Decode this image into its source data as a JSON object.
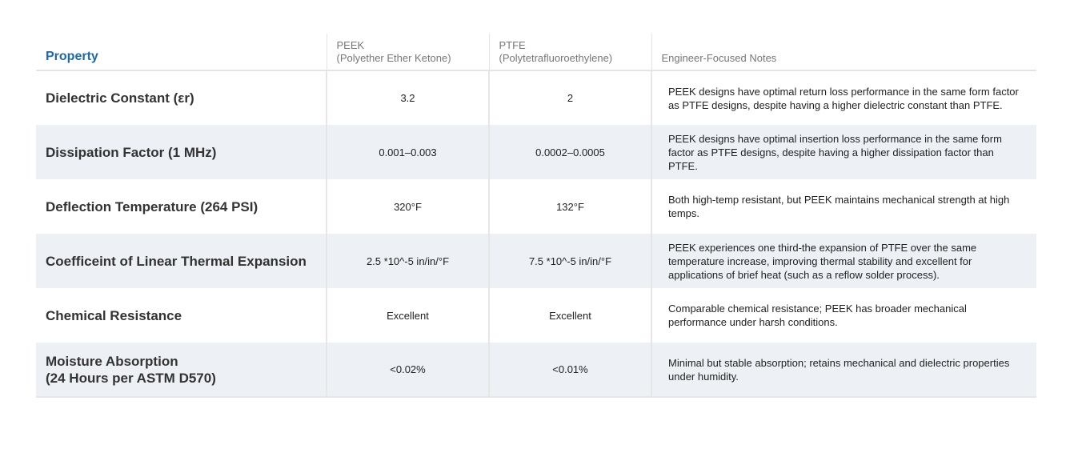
{
  "table": {
    "headers": {
      "property": "Property",
      "peek_name": "PEEK",
      "peek_full": "(Polyether Ether Ketone)",
      "ptfe_name": "PTFE",
      "ptfe_full": "(Polytetrafluoroethylene)",
      "notes": "Engineer-Focused Notes"
    },
    "rows": [
      {
        "property": "Dielectric Constant (εr)",
        "property2": "",
        "peek": "3.2",
        "ptfe": "2",
        "notes": "PEEK designs have optimal return loss performance in the same form factor as PTFE designs, despite having a higher dielectric constant than PTFE."
      },
      {
        "property": "Dissipation Factor (1 MHz)",
        "property2": "",
        "peek": "0.001–0.003",
        "ptfe": "0.0002–0.0005",
        "notes": "PEEK designs have optimal insertion loss performance in the same form factor as PTFE designs, despite having a higher dissipation factor than PTFE."
      },
      {
        "property": "Deflection Temperature (264 PSI)",
        "property2": "",
        "peek": "320°F",
        "ptfe": "132°F",
        "notes": "Both high-temp resistant, but PEEK maintains mechanical strength at high temps."
      },
      {
        "property": "Coefficeint of Linear Thermal Expansion",
        "property2": "",
        "peek": "2.5 *10^-5 in/in/°F",
        "ptfe": "7.5 *10^-5 in/in/°F",
        "notes": "PEEK experiences one third-the expansion of PTFE over the same temperature increase, improving thermal stability and excellent for applications of brief heat (such as a reflow solder process)."
      },
      {
        "property": "Chemical Resistance",
        "property2": "",
        "peek": "Excellent",
        "ptfe": "Excellent",
        "notes": "Comparable chemical resistance; PEEK has broader mechanical performance under harsh conditions."
      },
      {
        "property": "Moisture Absorption",
        "property2": "(24 Hours per ASTM D570)",
        "peek": "<0.02%",
        "ptfe": "<0.01%",
        "notes": "Minimal but stable absorption; retains mechanical and dielectric properties under humidity."
      }
    ]
  }
}
